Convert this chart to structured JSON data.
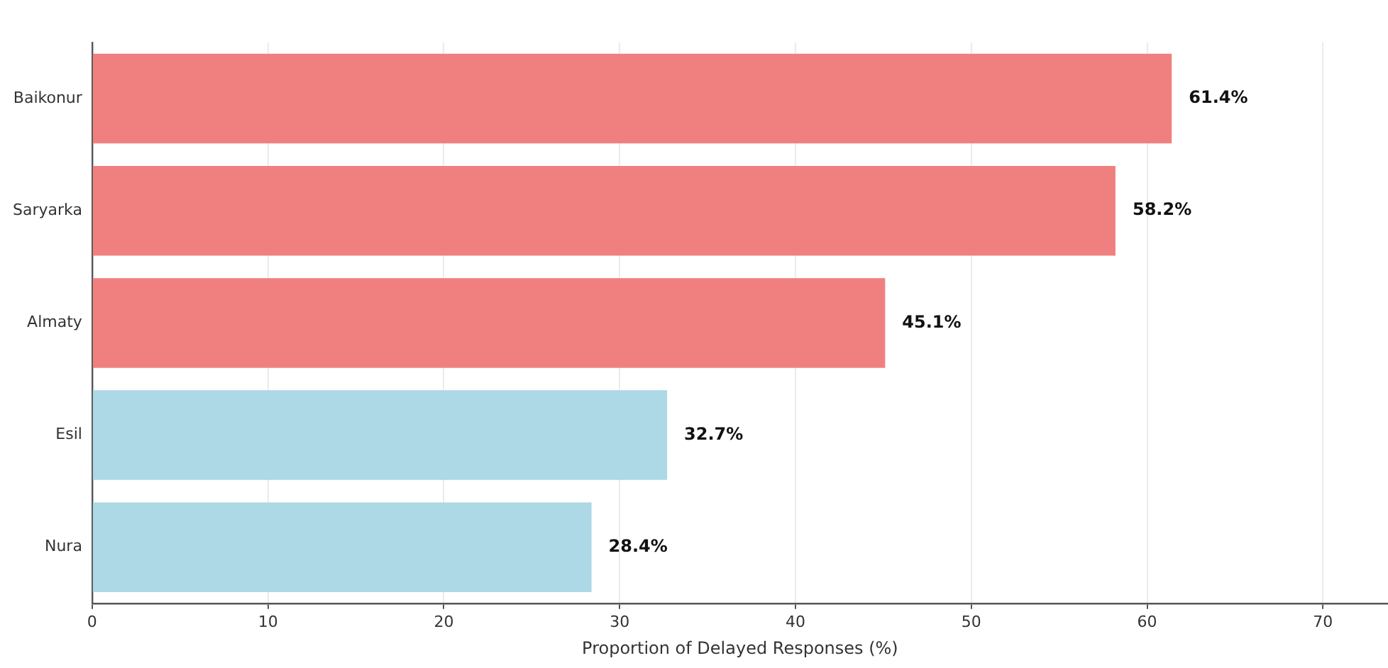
{
  "chart_data": {
    "type": "bar",
    "orientation": "horizontal",
    "xlabel": "Proportion of Delayed Responses (%)",
    "categories": [
      "Baikonur",
      "Saryarka",
      "Almaty",
      "Esil",
      "Nura"
    ],
    "values": [
      61.4,
      58.2,
      45.1,
      32.7,
      28.4
    ],
    "colors": [
      "#f08080",
      "#f08080",
      "#f08080",
      "#add8e6",
      "#add8e6"
    ],
    "value_labels": [
      "61.4%",
      "58.2%",
      "45.1%",
      "32.7%",
      "28.4%"
    ],
    "xlim": [
      0,
      73.7
    ],
    "xticks": [
      0,
      10,
      20,
      30,
      40,
      50,
      60,
      70
    ],
    "grid": "x",
    "legend": false
  }
}
